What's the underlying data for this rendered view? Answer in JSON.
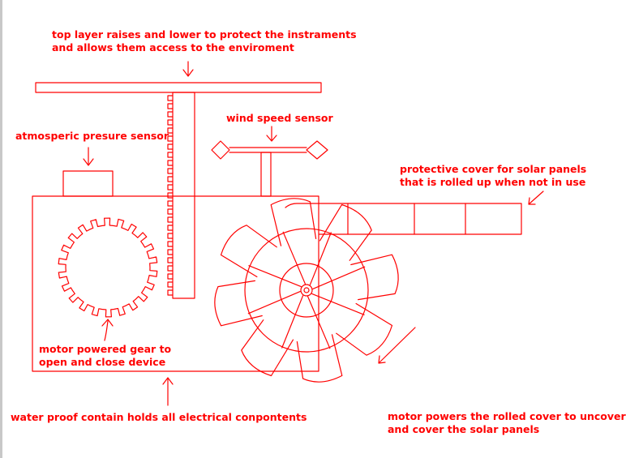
{
  "colors": {
    "ink": "#ff0000",
    "label": "#ff0000",
    "background": "#ffffff",
    "edge": "#c8c8c8"
  },
  "labels": {
    "top_layer": [
      "top layer raises and lower to protect the instraments",
      "and allows them access to the enviroment"
    ],
    "wind_sensor": [
      "wind speed sensor"
    ],
    "pressure_sensor": [
      "atmosperic presure sensor"
    ],
    "solar_cover": [
      "protective cover for solar panels",
      "that is rolled up when not in use"
    ],
    "gear": [
      "motor powered gear to",
      "open and close device"
    ],
    "container": [
      "water proof contain holds all electrical conpontents"
    ],
    "cover_motor": [
      "motor powers the rolled cover to uncover",
      "and cover the solar panels"
    ]
  }
}
